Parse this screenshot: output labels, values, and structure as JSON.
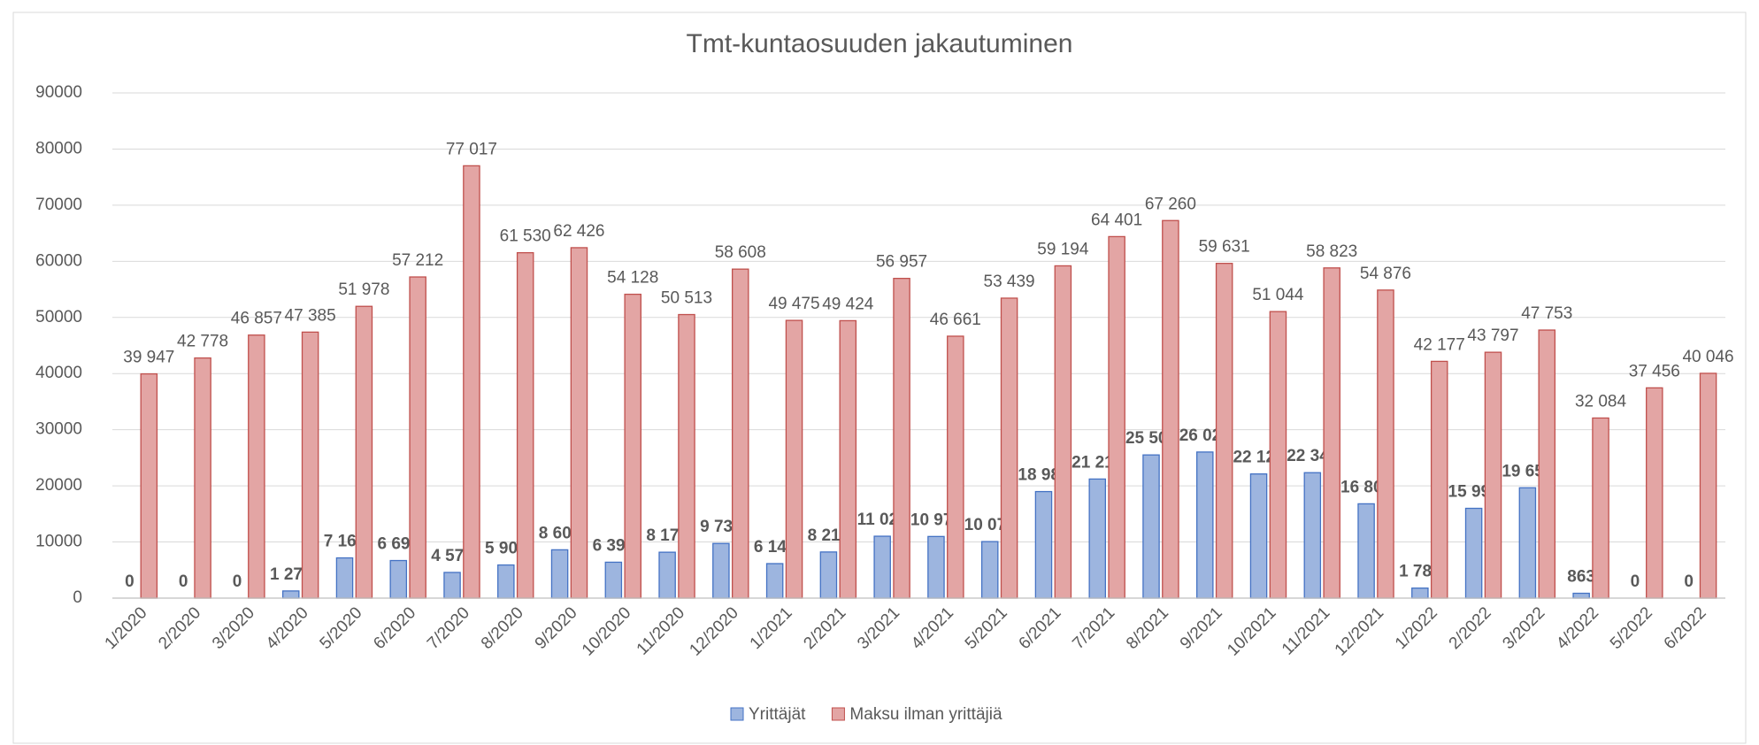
{
  "chart_data": {
    "type": "bar",
    "title": "Tmt-kuntaosuuden jakautuminen",
    "categories": [
      "1/2020",
      "2/2020",
      "3/2020",
      "4/2020",
      "5/2020",
      "6/2020",
      "7/2020",
      "8/2020",
      "9/2020",
      "10/2020",
      "11/2020",
      "12/2020",
      "1/2021",
      "2/2021",
      "3/2021",
      "4/2021",
      "5/2021",
      "6/2021",
      "7/2021",
      "8/2021",
      "9/2021",
      "10/2021",
      "11/2021",
      "12/2021",
      "1/2022",
      "2/2022",
      "3/2022",
      "4/2022",
      "5/2022",
      "6/2022"
    ],
    "series": [
      {
        "name": "Yrittäjät",
        "color": "#9db5df",
        "stroke": "#4472c4",
        "values": [
          0,
          0,
          0,
          1277,
          7167,
          6695,
          4575,
          5904,
          8608,
          6395,
          8177,
          9736,
          6147,
          8219,
          11027,
          10979,
          10071,
          18981,
          21215,
          25508,
          26026,
          22121,
          22346,
          16801,
          1786,
          15996,
          19657,
          863,
          0,
          0
        ],
        "value_labels": [
          "0",
          "0",
          "0",
          "1 277",
          "7 167",
          "6 695",
          "4 575",
          "5 904",
          "8 608",
          "6 395",
          "8 177",
          "9 736",
          "6 147",
          "8 219",
          "11 027",
          "10 979",
          "10 071",
          "18 981",
          "21 215",
          "25 508",
          "26 026",
          "22 121",
          "22 346",
          "16 801",
          "1 786",
          "15 996",
          "19 657",
          "863",
          "0",
          "0"
        ]
      },
      {
        "name": "Maksu ilman yrittäjiä",
        "color": "#e3a5a4",
        "stroke": "#c0504d",
        "values": [
          39947,
          42778,
          46857,
          47385,
          51978,
          57212,
          77017,
          61530,
          62426,
          54128,
          50513,
          58608,
          49475,
          49424,
          56957,
          46661,
          53439,
          59194,
          64401,
          67260,
          59631,
          51044,
          58823,
          54876,
          42177,
          43797,
          47753,
          32084,
          37456,
          40046
        ],
        "value_labels": [
          "39 947",
          "42 778",
          "46 857",
          "47 385",
          "51 978",
          "57 212",
          "77 017",
          "61 530",
          "62 426",
          "54 128",
          "50 513",
          "58 608",
          "49 475",
          "49 424",
          "56 957",
          "46 661",
          "53 439",
          "59 194",
          "64 401",
          "67 260",
          "59 631",
          "51 044",
          "58 823",
          "54 876",
          "42 177",
          "43 797",
          "47 753",
          "32 084",
          "37 456",
          "40 046"
        ]
      }
    ],
    "ylim": [
      0,
      90000
    ],
    "yticks": [
      0,
      10000,
      20000,
      30000,
      40000,
      50000,
      60000,
      70000,
      80000,
      90000
    ],
    "grid": true,
    "legend": "bottom"
  }
}
